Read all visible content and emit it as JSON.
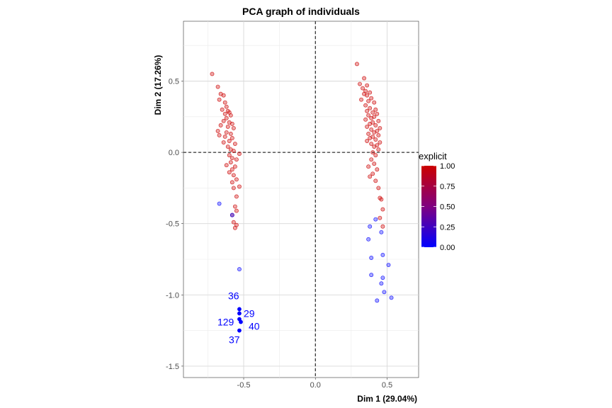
{
  "chart_data": {
    "type": "scatter",
    "title": "PCA graph of individuals",
    "xlabel": "Dim 1 (29.04%)",
    "ylabel": "Dim 2 (17.26%)",
    "xlim": [
      -0.92,
      0.72
    ],
    "ylim": [
      -1.58,
      0.92
    ],
    "x_ticks": [
      -0.5,
      0.0,
      0.5
    ],
    "x_tick_labels": [
      "-0.5",
      "0.0",
      "0.5"
    ],
    "y_ticks": [
      -1.5,
      -1.0,
      -0.5,
      0.0,
      0.5
    ],
    "y_tick_labels": [
      "-1.5",
      "-1.0",
      "-0.5",
      "0.0",
      "0.5"
    ],
    "grid": true,
    "reference_lines": {
      "x": 0,
      "y": 0,
      "style": "dashed"
    },
    "color_scale": {
      "title": "explicit",
      "low": "#0000ff",
      "mid": "#800080",
      "high": "#cc0000",
      "ticks": [
        1.0,
        0.75,
        0.5,
        0.25,
        0.0
      ],
      "tick_labels": [
        "1.00",
        "0.75",
        "0.50",
        "0.25",
        "0.00"
      ],
      "placement": "right"
    },
    "points": [
      {
        "x": -0.72,
        "y": 0.55,
        "c": 1
      },
      {
        "x": -0.68,
        "y": 0.46,
        "c": 1
      },
      {
        "x": -0.66,
        "y": 0.41,
        "c": 1
      },
      {
        "x": -0.64,
        "y": 0.4,
        "c": 1
      },
      {
        "x": -0.67,
        "y": 0.37,
        "c": 1
      },
      {
        "x": -0.63,
        "y": 0.35,
        "c": 1
      },
      {
        "x": -0.62,
        "y": 0.32,
        "c": 1
      },
      {
        "x": -0.65,
        "y": 0.3,
        "c": 1
      },
      {
        "x": -0.61,
        "y": 0.29,
        "c": 1
      },
      {
        "x": -0.6,
        "y": 0.28,
        "c": 1
      },
      {
        "x": -0.63,
        "y": 0.27,
        "c": 1
      },
      {
        "x": -0.59,
        "y": 0.26,
        "c": 1
      },
      {
        "x": -0.62,
        "y": 0.24,
        "c": 1
      },
      {
        "x": -0.64,
        "y": 0.22,
        "c": 1
      },
      {
        "x": -0.6,
        "y": 0.21,
        "c": 1
      },
      {
        "x": -0.58,
        "y": 0.2,
        "c": 1
      },
      {
        "x": -0.66,
        "y": 0.19,
        "c": 1
      },
      {
        "x": -0.61,
        "y": 0.18,
        "c": 1
      },
      {
        "x": -0.57,
        "y": 0.17,
        "c": 1
      },
      {
        "x": -0.68,
        "y": 0.15,
        "c": 1
      },
      {
        "x": -0.62,
        "y": 0.14,
        "c": 1
      },
      {
        "x": -0.59,
        "y": 0.13,
        "c": 1
      },
      {
        "x": -0.67,
        "y": 0.12,
        "c": 1
      },
      {
        "x": -0.63,
        "y": 0.11,
        "c": 1
      },
      {
        "x": -0.58,
        "y": 0.1,
        "c": 1
      },
      {
        "x": -0.6,
        "y": 0.08,
        "c": 1
      },
      {
        "x": -0.64,
        "y": 0.07,
        "c": 1
      },
      {
        "x": -0.56,
        "y": 0.06,
        "c": 1
      },
      {
        "x": -0.61,
        "y": 0.04,
        "c": 1
      },
      {
        "x": -0.59,
        "y": 0.02,
        "c": 1
      },
      {
        "x": -0.57,
        "y": 0.01,
        "c": 1
      },
      {
        "x": -0.53,
        "y": -0.01,
        "c": 1
      },
      {
        "x": -0.6,
        "y": -0.02,
        "c": 1
      },
      {
        "x": -0.58,
        "y": -0.04,
        "c": 1
      },
      {
        "x": -0.55,
        "y": -0.05,
        "c": 1
      },
      {
        "x": -0.59,
        "y": -0.07,
        "c": 1
      },
      {
        "x": -0.62,
        "y": -0.09,
        "c": 1
      },
      {
        "x": -0.56,
        "y": -0.1,
        "c": 1
      },
      {
        "x": -0.58,
        "y": -0.12,
        "c": 1
      },
      {
        "x": -0.6,
        "y": -0.14,
        "c": 1
      },
      {
        "x": -0.57,
        "y": -0.16,
        "c": 1
      },
      {
        "x": -0.55,
        "y": -0.19,
        "c": 1
      },
      {
        "x": -0.58,
        "y": -0.21,
        "c": 1
      },
      {
        "x": -0.53,
        "y": -0.24,
        "c": 1
      },
      {
        "x": -0.57,
        "y": -0.25,
        "c": 1
      },
      {
        "x": -0.55,
        "y": -0.31,
        "c": 1
      },
      {
        "x": -0.56,
        "y": -0.38,
        "c": 1
      },
      {
        "x": -0.55,
        "y": -0.41,
        "c": 1
      },
      {
        "x": -0.58,
        "y": -0.44,
        "c": 1
      },
      {
        "x": -0.57,
        "y": -0.49,
        "c": 1
      },
      {
        "x": -0.55,
        "y": -0.51,
        "c": 1
      },
      {
        "x": -0.56,
        "y": -0.53,
        "c": 1
      },
      {
        "x": -0.67,
        "y": -0.36,
        "c": 0
      },
      {
        "x": -0.58,
        "y": -0.44,
        "c": 0
      },
      {
        "x": -0.53,
        "y": -0.82,
        "c": 0
      },
      {
        "x": -0.53,
        "y": -1.1,
        "c": 0,
        "label": "36",
        "dx": -16,
        "dy": -14
      },
      {
        "x": -0.53,
        "y": -1.13,
        "c": 0,
        "label": "29",
        "dx": 6,
        "dy": 5
      },
      {
        "x": -0.53,
        "y": -1.17,
        "c": 0,
        "label": "129",
        "dx": -31,
        "dy": 9
      },
      {
        "x": -0.52,
        "y": -1.19,
        "c": 0,
        "label": "40",
        "dx": 11,
        "dy": 11
      },
      {
        "x": -0.53,
        "y": -1.25,
        "c": 0,
        "label": "37",
        "dx": -15,
        "dy": 18
      },
      {
        "x": 0.29,
        "y": 0.62,
        "c": 1
      },
      {
        "x": 0.34,
        "y": 0.52,
        "c": 1
      },
      {
        "x": 0.31,
        "y": 0.48,
        "c": 1
      },
      {
        "x": 0.36,
        "y": 0.47,
        "c": 1
      },
      {
        "x": 0.33,
        "y": 0.45,
        "c": 1
      },
      {
        "x": 0.35,
        "y": 0.43,
        "c": 1
      },
      {
        "x": 0.38,
        "y": 0.42,
        "c": 1
      },
      {
        "x": 0.34,
        "y": 0.41,
        "c": 1
      },
      {
        "x": 0.36,
        "y": 0.4,
        "c": 1
      },
      {
        "x": 0.39,
        "y": 0.38,
        "c": 1
      },
      {
        "x": 0.32,
        "y": 0.37,
        "c": 1
      },
      {
        "x": 0.37,
        "y": 0.36,
        "c": 1
      },
      {
        "x": 0.41,
        "y": 0.35,
        "c": 1
      },
      {
        "x": 0.35,
        "y": 0.33,
        "c": 1
      },
      {
        "x": 0.38,
        "y": 0.31,
        "c": 1
      },
      {
        "x": 0.42,
        "y": 0.3,
        "c": 1
      },
      {
        "x": 0.36,
        "y": 0.29,
        "c": 1
      },
      {
        "x": 0.4,
        "y": 0.28,
        "c": 1
      },
      {
        "x": 0.43,
        "y": 0.27,
        "c": 1
      },
      {
        "x": 0.37,
        "y": 0.26,
        "c": 1
      },
      {
        "x": 0.41,
        "y": 0.25,
        "c": 1
      },
      {
        "x": 0.39,
        "y": 0.24,
        "c": 1
      },
      {
        "x": 0.35,
        "y": 0.23,
        "c": 1
      },
      {
        "x": 0.44,
        "y": 0.22,
        "c": 1
      },
      {
        "x": 0.4,
        "y": 0.21,
        "c": 1
      },
      {
        "x": 0.38,
        "y": 0.2,
        "c": 1
      },
      {
        "x": 0.42,
        "y": 0.19,
        "c": 1
      },
      {
        "x": 0.36,
        "y": 0.18,
        "c": 1
      },
      {
        "x": 0.45,
        "y": 0.17,
        "c": 1
      },
      {
        "x": 0.39,
        "y": 0.16,
        "c": 1
      },
      {
        "x": 0.43,
        "y": 0.15,
        "c": 1
      },
      {
        "x": 0.41,
        "y": 0.14,
        "c": 1
      },
      {
        "x": 0.37,
        "y": 0.13,
        "c": 1
      },
      {
        "x": 0.44,
        "y": 0.12,
        "c": 1
      },
      {
        "x": 0.4,
        "y": 0.11,
        "c": 1
      },
      {
        "x": 0.38,
        "y": 0.1,
        "c": 1
      },
      {
        "x": 0.42,
        "y": 0.09,
        "c": 1
      },
      {
        "x": 0.36,
        "y": 0.08,
        "c": 1
      },
      {
        "x": 0.45,
        "y": 0.07,
        "c": 1
      },
      {
        "x": 0.39,
        "y": 0.06,
        "c": 1
      },
      {
        "x": 0.43,
        "y": 0.05,
        "c": 1
      },
      {
        "x": 0.41,
        "y": 0.04,
        "c": 1
      },
      {
        "x": 0.44,
        "y": 0.02,
        "c": 1
      },
      {
        "x": 0.4,
        "y": 0.0,
        "c": 1
      },
      {
        "x": 0.42,
        "y": -0.02,
        "c": 1
      },
      {
        "x": 0.39,
        "y": -0.05,
        "c": 1
      },
      {
        "x": 0.41,
        "y": -0.08,
        "c": 1
      },
      {
        "x": 0.37,
        "y": -0.1,
        "c": 1
      },
      {
        "x": 0.43,
        "y": -0.12,
        "c": 1
      },
      {
        "x": 0.4,
        "y": -0.15,
        "c": 1
      },
      {
        "x": 0.38,
        "y": -0.17,
        "c": 1
      },
      {
        "x": 0.42,
        "y": -0.2,
        "c": 1
      },
      {
        "x": 0.44,
        "y": -0.25,
        "c": 1
      },
      {
        "x": 0.45,
        "y": -0.32,
        "c": 1
      },
      {
        "x": 0.46,
        "y": -0.33,
        "c": 1
      },
      {
        "x": 0.47,
        "y": -0.4,
        "c": 1
      },
      {
        "x": 0.45,
        "y": -0.46,
        "c": 1
      },
      {
        "x": 0.47,
        "y": -0.52,
        "c": 1
      },
      {
        "x": 0.42,
        "y": -0.47,
        "c": 0
      },
      {
        "x": 0.38,
        "y": -0.52,
        "c": 0
      },
      {
        "x": 0.46,
        "y": -0.56,
        "c": 0
      },
      {
        "x": 0.37,
        "y": -0.61,
        "c": 0
      },
      {
        "x": 0.47,
        "y": -0.72,
        "c": 0
      },
      {
        "x": 0.39,
        "y": -0.74,
        "c": 0
      },
      {
        "x": 0.51,
        "y": -0.79,
        "c": 0
      },
      {
        "x": 0.39,
        "y": -0.86,
        "c": 0
      },
      {
        "x": 0.47,
        "y": -0.88,
        "c": 0
      },
      {
        "x": 0.46,
        "y": -0.92,
        "c": 0
      },
      {
        "x": 0.48,
        "y": -0.98,
        "c": 0
      },
      {
        "x": 0.53,
        "y": -1.02,
        "c": 0
      },
      {
        "x": 0.43,
        "y": -1.04,
        "c": 0
      }
    ]
  }
}
